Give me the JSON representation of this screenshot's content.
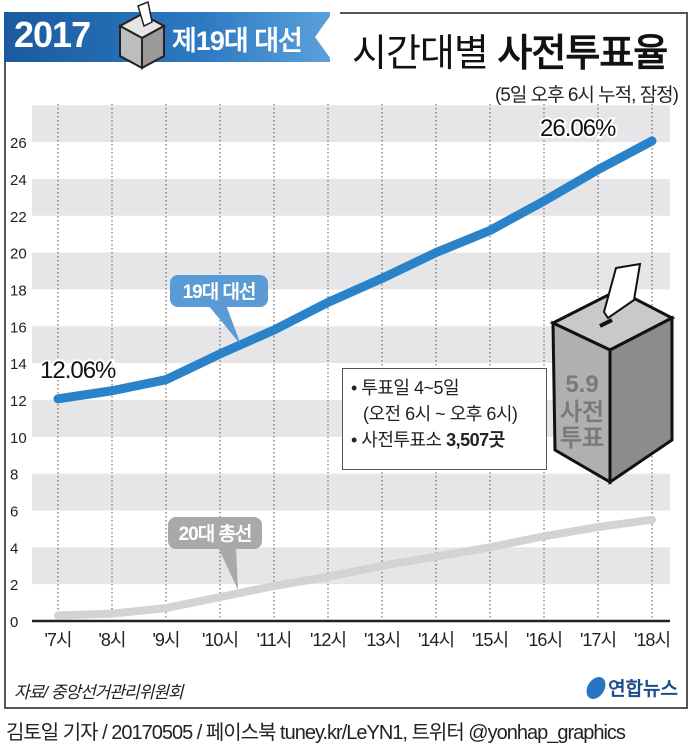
{
  "banner": {
    "year": "2017",
    "election": "제19대 대선"
  },
  "header": {
    "title_light": "시간대별",
    "title_bold": "사전투표율",
    "subtitle": "(5일 오후 6시 누적, 잠정)"
  },
  "labels": {
    "start_value": "12.06%",
    "end_value": "26.06%",
    "series1_bubble": "19대 대선",
    "series2_bubble": "20대 총선"
  },
  "info_box": {
    "line1": "• 투표일 4~5일",
    "line2": "(오전 6시 ~ 오후 6시)",
    "line3_prefix": "• 사전투표소 ",
    "line3_bold": "3,507곳"
  },
  "ballot_box": {
    "date": "5.9",
    "text1": "사전",
    "text2": "투표"
  },
  "footer": {
    "source": "자료/ 중앙선거관리위원회",
    "logo": "연합뉴스",
    "credit": "김토일 기자 / 20170505 / 페이스북 tuney.kr/LeYN1, 트위터 @yonhap_graphics"
  },
  "colors": {
    "series1": "#2a82c9",
    "series2": "#d3d3d3",
    "band": "#e6e6e8",
    "banner": "#2d79c1"
  },
  "chart_data": {
    "type": "line",
    "title": "시간대별 사전투표율",
    "subtitle": "(5일 오후 6시 누적, 잠정)",
    "xlabel": "",
    "ylabel": "",
    "categories": [
      "'7시",
      "'8시",
      "'9시",
      "'10시",
      "'11시",
      "'12시",
      "'13시",
      "'14시",
      "'15시",
      "'16시",
      "'17시",
      "'18시"
    ],
    "yticks": [
      0,
      2,
      4,
      6,
      8,
      10,
      12,
      14,
      16,
      18,
      20,
      22,
      24,
      26
    ],
    "ylim": [
      0,
      28
    ],
    "grid": "alternating horizontal bands, dotted vertical lines",
    "series": [
      {
        "name": "19대 대선",
        "values": [
          12.06,
          12.5,
          13.1,
          14.5,
          15.8,
          17.3,
          18.6,
          20.0,
          21.2,
          22.8,
          24.5,
          26.06
        ]
      },
      {
        "name": "20대 총선",
        "values": [
          0.3,
          0.4,
          0.7,
          1.3,
          1.9,
          2.4,
          3.0,
          3.5,
          4.0,
          4.6,
          5.1,
          5.5
        ]
      }
    ],
    "annotations": [
      "12.06%",
      "26.06%"
    ]
  }
}
